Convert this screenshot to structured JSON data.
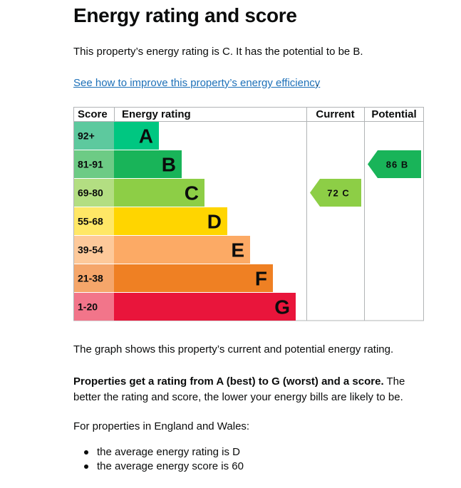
{
  "heading": "Energy rating and score",
  "summary": "This property’s energy rating is C. It has the potential to be B.",
  "improve_link": "See how to improve this property’s energy efficiency",
  "improve_link_stop": ".",
  "chart_data": {
    "type": "bar",
    "columns": {
      "score": "Score",
      "rating": "Energy rating",
      "current": "Current",
      "potential": "Potential"
    },
    "bands": [
      {
        "letter": "A",
        "range": "92+",
        "color": "#00c781",
        "label_color": "#5dc99e"
      },
      {
        "letter": "B",
        "range": "81-91",
        "color": "#19b459",
        "label_color": "#6dcb85"
      },
      {
        "letter": "C",
        "range": "69-80",
        "color": "#8dce46",
        "label_color": "#b3de82"
      },
      {
        "letter": "D",
        "range": "55-68",
        "color": "#ffd500",
        "label_color": "#ffe766"
      },
      {
        "letter": "E",
        "range": "39-54",
        "color": "#fcaa65",
        "label_color": "#fdc99a"
      },
      {
        "letter": "F",
        "range": "21-38",
        "color": "#ef8023",
        "label_color": "#f5a66a"
      },
      {
        "letter": "G",
        "range": "1-20",
        "color": "#e9153b",
        "label_color": "#f2758a"
      }
    ],
    "current": {
      "score": 72,
      "band": "C",
      "label": "72 C",
      "color": "#8dce46"
    },
    "potential": {
      "score": 86,
      "band": "B",
      "label": "86 B",
      "color": "#19b459"
    }
  },
  "graph_note": "The graph shows this property’s current and potential energy rating.",
  "explainer_strong": "Properties get a rating from A (best) to G (worst) and a score.",
  "explainer_rest": " The better the rating and score, the lower your energy bills are likely to be.",
  "region_note": "For properties in England and Wales:",
  "averages": [
    "the average energy rating is D",
    "the average energy score is 60"
  ]
}
